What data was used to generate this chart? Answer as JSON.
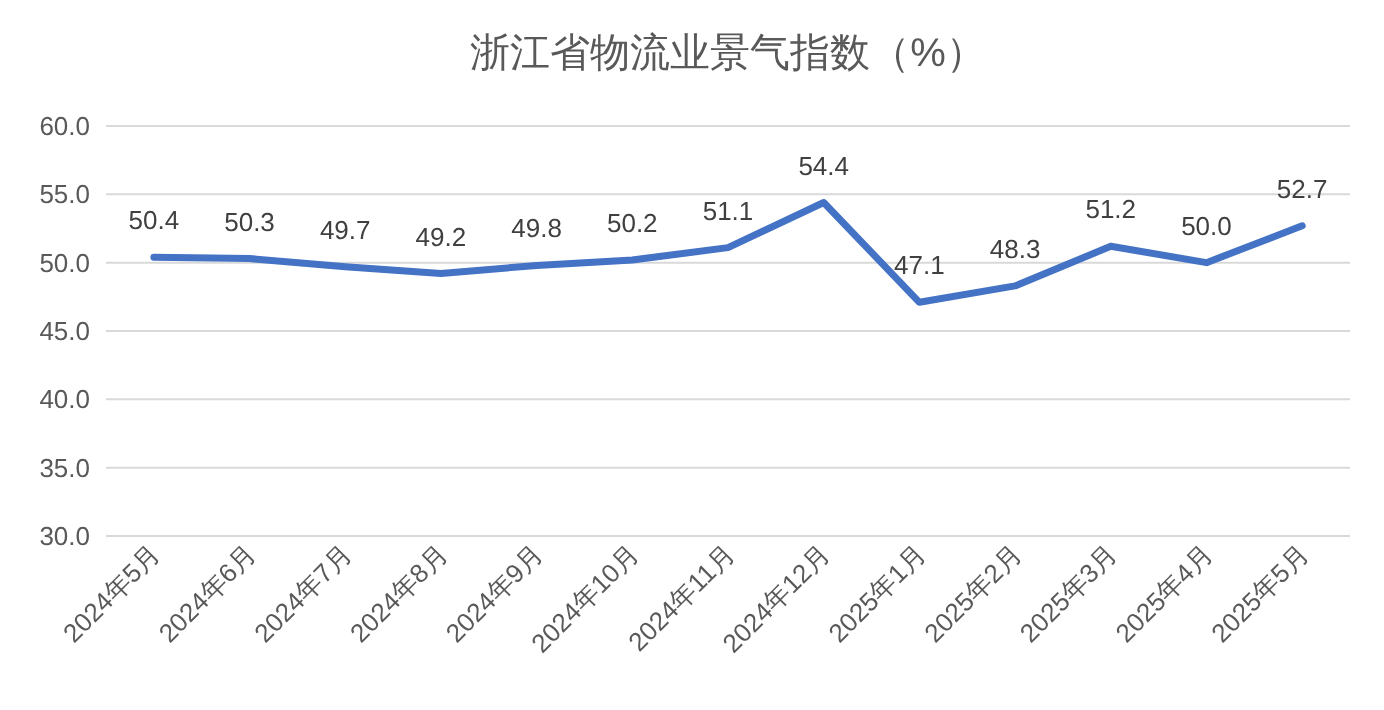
{
  "chart_data": {
    "type": "line",
    "title": "浙江省物流业景气指数（%）",
    "categories": [
      "2024年5月",
      "2024年6月",
      "2024年7月",
      "2024年8月",
      "2024年9月",
      "2024年10月",
      "2024年11月",
      "2024年12月",
      "2025年1月",
      "2025年2月",
      "2025年3月",
      "2025年4月",
      "2025年5月"
    ],
    "values": [
      50.4,
      50.3,
      49.7,
      49.2,
      49.8,
      50.2,
      51.1,
      54.4,
      47.1,
      48.3,
      51.2,
      50.0,
      52.7
    ],
    "value_labels": [
      "50.4",
      "50.3",
      "49.7",
      "49.2",
      "49.8",
      "50.2",
      "51.1",
      "54.4",
      "47.1",
      "48.3",
      "51.2",
      "50.0",
      "52.7"
    ],
    "color": "#4472c4",
    "ylim": [
      30,
      60
    ],
    "yticks": [
      {
        "value": 30,
        "label": "30.0"
      },
      {
        "value": 35,
        "label": "35.0"
      },
      {
        "value": 40,
        "label": "40.0"
      },
      {
        "value": 45,
        "label": "45.0"
      },
      {
        "value": 50,
        "label": "50.0"
      },
      {
        "value": 55,
        "label": "55.0"
      },
      {
        "value": 60,
        "label": "60.0"
      }
    ],
    "grid": "y"
  }
}
